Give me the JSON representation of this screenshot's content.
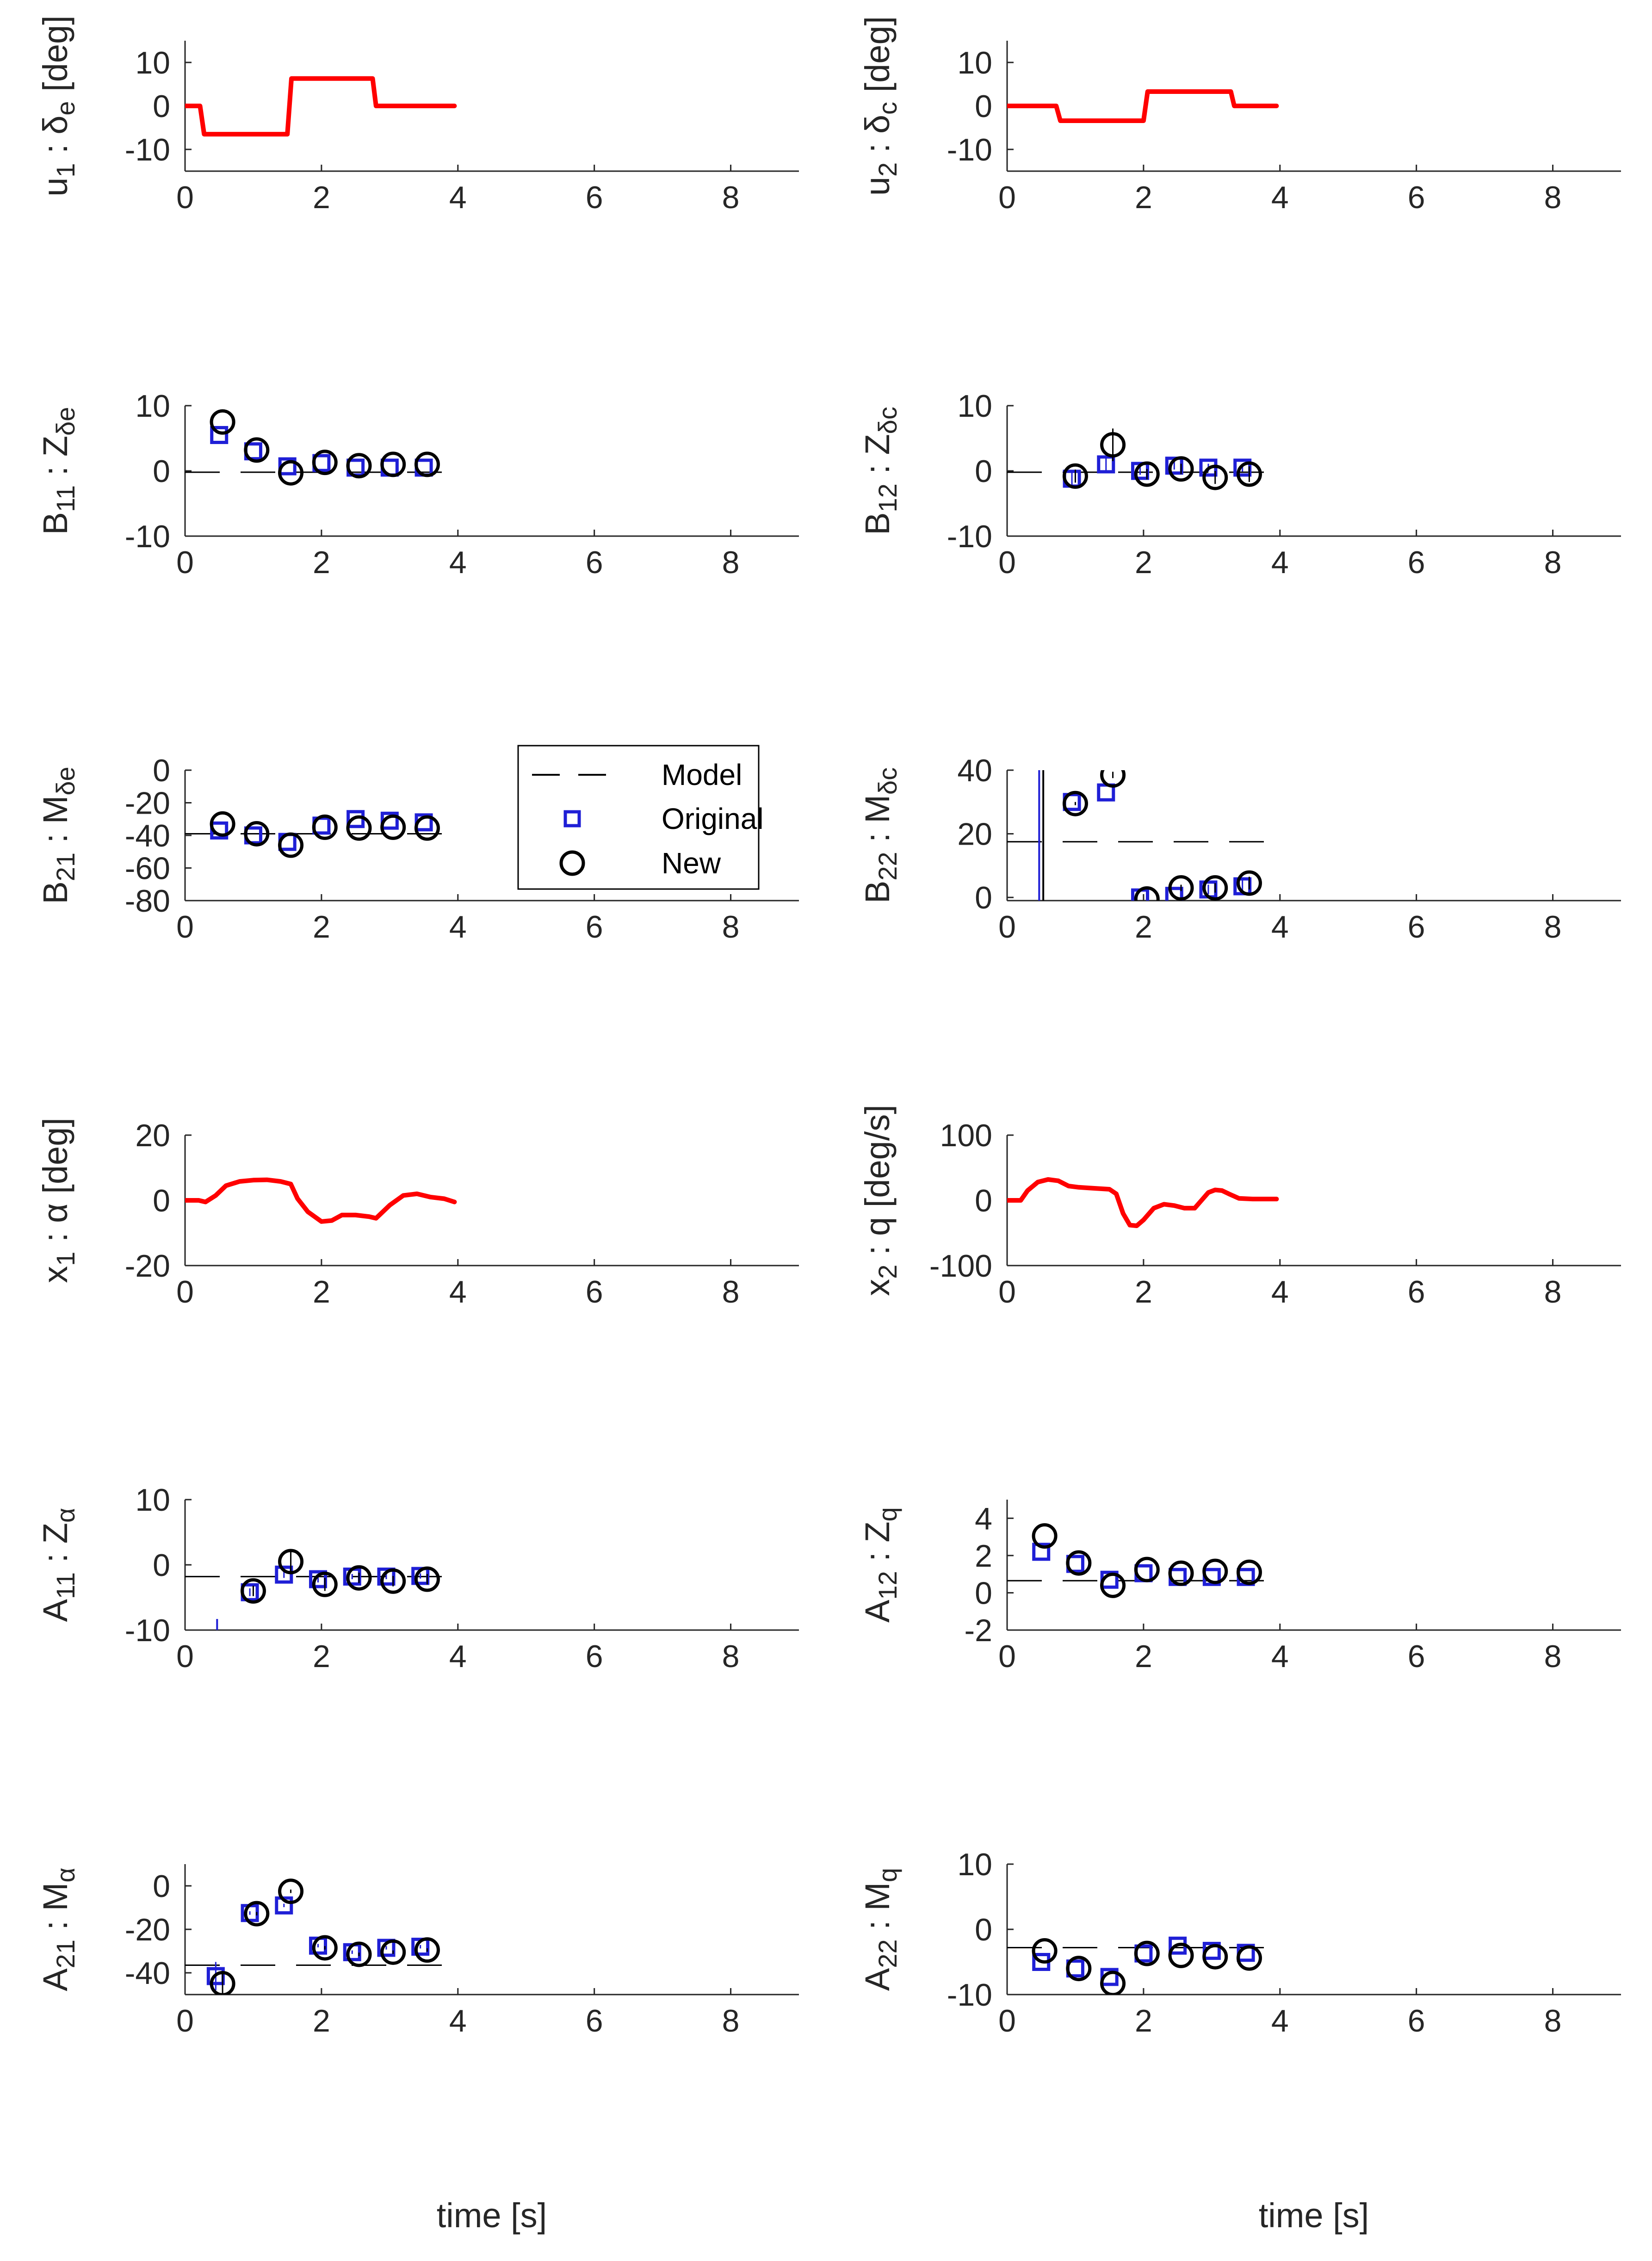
{
  "figure": {
    "xlabel_bottom": "time [s]",
    "legend": {
      "entries": [
        {
          "label": "Model",
          "marker": "dash",
          "color": "#000000"
        },
        {
          "label": "Original",
          "marker": "square",
          "color": "#1f1fd6"
        },
        {
          "label": "New",
          "marker": "circle",
          "color": "#000000"
        }
      ]
    }
  },
  "chart_data": [
    {
      "id": "u1",
      "type": "line",
      "ylabel_parts": [
        "u",
        "1",
        " : δ",
        "e",
        " [deg]"
      ],
      "xlim": [
        0,
        9
      ],
      "ylim": [
        -15,
        15
      ],
      "xticks": [
        0,
        2,
        4,
        6,
        8
      ],
      "yticks": [
        -10,
        0,
        10
      ],
      "series": [
        {
          "name": "input",
          "color": "#ff0000",
          "x": [
            0,
            0.22,
            0.28,
            1.5,
            1.56,
            2.75,
            2.8,
            3.95
          ],
          "y": [
            0,
            0,
            -6.5,
            -6.5,
            6.3,
            6.3,
            0,
            0
          ]
        }
      ]
    },
    {
      "id": "u2",
      "type": "line",
      "ylabel_parts": [
        "u",
        "2",
        " : δ",
        "c",
        " [deg]"
      ],
      "xlim": [
        0,
        9
      ],
      "ylim": [
        -15,
        15
      ],
      "xticks": [
        0,
        2,
        4,
        6,
        8
      ],
      "yticks": [
        -10,
        0,
        10
      ],
      "series": [
        {
          "name": "input",
          "color": "#ff0000",
          "x": [
            0,
            0.72,
            0.78,
            2.0,
            2.06,
            3.28,
            3.33,
            3.95
          ],
          "y": [
            0,
            0,
            -3.4,
            -3.4,
            3.3,
            3.3,
            0,
            0
          ]
        }
      ]
    },
    {
      "id": "B11",
      "type": "scatter",
      "ylabel_parts": [
        "B",
        "11",
        " : Z",
        "δe",
        ""
      ],
      "xlim": [
        0,
        9
      ],
      "ylim": [
        -10,
        10
      ],
      "xticks": [
        0,
        2,
        4,
        6,
        8
      ],
      "yticks": [
        -10,
        0,
        10
      ],
      "model": {
        "x": [
          0,
          4
        ],
        "y": [
          -0.2,
          -0.2
        ]
      },
      "original": {
        "x": [
          0.5,
          1.0,
          1.5,
          2.0,
          2.5,
          3.0,
          3.5
        ],
        "y": [
          5.5,
          3.0,
          0.7,
          1.2,
          0.5,
          0.5,
          0.5
        ],
        "err": [
          0,
          0,
          0,
          0,
          0,
          0,
          0
        ]
      },
      "new": {
        "x": [
          0.55,
          1.05,
          1.55,
          2.05,
          2.55,
          3.05,
          3.55
        ],
        "y": [
          7.5,
          3.2,
          -0.3,
          1.3,
          0.8,
          1.0,
          1.0
        ],
        "err": [
          0,
          0,
          0,
          0,
          0,
          0,
          0
        ]
      }
    },
    {
      "id": "B12",
      "type": "scatter",
      "ylabel_parts": [
        "B",
        "12",
        " : Z",
        "δc",
        ""
      ],
      "xlim": [
        0,
        9
      ],
      "ylim": [
        -10,
        10
      ],
      "xticks": [
        0,
        2,
        4,
        6,
        8
      ],
      "yticks": [
        -10,
        0,
        10
      ],
      "model": {
        "x": [
          0,
          4
        ],
        "y": [
          -0.2,
          -0.2
        ]
      },
      "original": {
        "x": [
          0.95,
          1.45,
          1.95,
          2.45,
          2.95,
          3.45
        ],
        "y": [
          -1.2,
          1.0,
          0.0,
          0.8,
          0.5,
          0.5
        ],
        "err": [
          1.2,
          1.0,
          0.6,
          0.6,
          0.6,
          0.6
        ]
      },
      "new": {
        "x": [
          1.0,
          1.55,
          2.05,
          2.55,
          3.05,
          3.55
        ],
        "y": [
          -0.8,
          4.0,
          -0.5,
          0.3,
          -1.0,
          -0.5
        ],
        "err": [
          1.0,
          2.5,
          0.8,
          0.8,
          1.0,
          1.2
        ]
      }
    },
    {
      "id": "B21",
      "type": "scatter",
      "ylabel_parts": [
        "B",
        "21",
        " : M",
        "δe",
        ""
      ],
      "xlim": [
        0,
        9
      ],
      "ylim": [
        -80,
        0
      ],
      "xticks": [
        0,
        2,
        4,
        6,
        8
      ],
      "yticks": [
        -80,
        -60,
        -40,
        -20,
        0
      ],
      "model": {
        "x": [
          0,
          4
        ],
        "y": [
          -39,
          -39
        ]
      },
      "original": {
        "x": [
          0.5,
          1.0,
          1.5,
          2.0,
          2.5,
          3.0,
          3.5
        ],
        "y": [
          -37,
          -40,
          -44,
          -34,
          -30,
          -31,
          -32
        ],
        "err": [
          0,
          0,
          0,
          0,
          0,
          0,
          0
        ]
      },
      "new": {
        "x": [
          0.55,
          1.05,
          1.55,
          2.05,
          2.55,
          3.05,
          3.55
        ],
        "y": [
          -33,
          -39,
          -46,
          -35,
          -35.5,
          -35,
          -35.5
        ],
        "err": [
          0,
          0,
          0,
          0,
          0,
          0,
          0
        ]
      }
    },
    {
      "id": "B22",
      "type": "scatter",
      "ylabel_parts": [
        "B",
        "22",
        " : M",
        "δc",
        ""
      ],
      "xlim": [
        0,
        9
      ],
      "ylim": [
        -1,
        40
      ],
      "xticks": [
        0,
        2,
        4,
        6,
        8
      ],
      "yticks": [
        0,
        20,
        40
      ],
      "model": {
        "x": [
          0,
          4
        ],
        "y": [
          17.5,
          17.5
        ]
      },
      "original": {
        "x": [
          0.95,
          1.45,
          1.95,
          2.45,
          2.95,
          3.45
        ],
        "y": [
          30,
          33,
          0,
          0.5,
          2.5,
          3.5
        ],
        "err": [
          0,
          0,
          0,
          0,
          1.5,
          2.0
        ]
      },
      "new": {
        "x": [
          1.0,
          1.55,
          2.05,
          2.55,
          3.05,
          3.55
        ],
        "y": [
          29.5,
          38.5,
          -0.5,
          3.0,
          3.0,
          4.5
        ],
        "err": [
          0.5,
          1.0,
          0,
          1.0,
          1.5,
          2.0
        ]
      },
      "extra_lines": [
        {
          "x": 0.47,
          "y1": -1,
          "y2": 40,
          "color": "#1f1fd6"
        },
        {
          "x": 0.53,
          "y1": -1,
          "y2": 40,
          "color": "#000000"
        }
      ]
    },
    {
      "id": "x1",
      "type": "line",
      "ylabel_parts": [
        "x",
        "1",
        " : α [deg]",
        "",
        ""
      ],
      "xlim": [
        0,
        9
      ],
      "ylim": [
        -20,
        20
      ],
      "xticks": [
        0,
        2,
        4,
        6,
        8
      ],
      "yticks": [
        -20,
        0,
        20
      ],
      "series": [
        {
          "name": "state",
          "color": "#ff0000",
          "x": [
            0,
            0.2,
            0.3,
            0.45,
            0.6,
            0.8,
            1.0,
            1.2,
            1.4,
            1.55,
            1.65,
            1.8,
            2.0,
            2.15,
            2.3,
            2.5,
            2.7,
            2.8,
            3.0,
            3.2,
            3.4,
            3.6,
            3.8,
            3.95
          ],
          "y": [
            0,
            0,
            -0.5,
            1.5,
            4.5,
            5.8,
            6.2,
            6.3,
            5.8,
            5.0,
            0.5,
            -3.5,
            -6.5,
            -6.2,
            -4.5,
            -4.5,
            -5.0,
            -5.5,
            -1.5,
            1.5,
            2.0,
            1.0,
            0.5,
            -0.5
          ]
        }
      ]
    },
    {
      "id": "x2",
      "type": "line",
      "ylabel_parts": [
        "x",
        "2",
        " : q [deg/s]",
        "",
        ""
      ],
      "xlim": [
        0,
        9
      ],
      "ylim": [
        -100,
        100
      ],
      "xticks": [
        0,
        2,
        4,
        6,
        8
      ],
      "yticks": [
        -100,
        0,
        100
      ],
      "series": [
        {
          "name": "state",
          "color": "#ff0000",
          "x": [
            0,
            0.2,
            0.3,
            0.45,
            0.6,
            0.75,
            0.9,
            1.05,
            1.2,
            1.35,
            1.5,
            1.6,
            1.7,
            1.8,
            1.9,
            2.0,
            2.15,
            2.3,
            2.45,
            2.6,
            2.75,
            2.85,
            2.95,
            3.05,
            3.15,
            3.25,
            3.4,
            3.6,
            3.8,
            3.95
          ],
          "y": [
            0,
            0,
            15,
            28,
            32,
            30,
            22,
            20,
            19,
            18,
            17,
            10,
            -20,
            -38,
            -39,
            -30,
            -12,
            -6,
            -8,
            -12,
            -12,
            0,
            12,
            16,
            15,
            10,
            3,
            2,
            2,
            2
          ]
        }
      ]
    },
    {
      "id": "A11",
      "type": "scatter",
      "ylabel_parts": [
        "A",
        "11",
        " : Z",
        "α",
        ""
      ],
      "xlim": [
        0,
        9
      ],
      "ylim": [
        -10,
        10
      ],
      "xticks": [
        0,
        2,
        4,
        6,
        8
      ],
      "yticks": [
        -10,
        0,
        10
      ],
      "model": {
        "x": [
          0,
          4
        ],
        "y": [
          -1.8,
          -1.8
        ]
      },
      "original": {
        "x": [
          0.95,
          1.45,
          1.95,
          2.45,
          2.95,
          3.45
        ],
        "y": [
          -4.2,
          -1.5,
          -2.2,
          -1.8,
          -1.8,
          -1.7
        ],
        "err": [
          0.6,
          0.5,
          0.5,
          0.4,
          0.4,
          0.4
        ]
      },
      "new": {
        "x": [
          1.0,
          1.55,
          2.05,
          2.55,
          3.05,
          3.55
        ],
        "y": [
          -4.0,
          0.5,
          -3.0,
          -2.0,
          -2.5,
          -2.2
        ],
        "err": [
          0.8,
          1.5,
          1.0,
          0.8,
          0.8,
          0.8
        ]
      },
      "extra_lines": [
        {
          "x": 0.47,
          "y1": -10,
          "y2": -8.3,
          "color": "#1f1fd6"
        }
      ]
    },
    {
      "id": "A12",
      "type": "scatter",
      "ylabel_parts": [
        "A",
        "12",
        " : Z",
        "q",
        ""
      ],
      "xlim": [
        0,
        9
      ],
      "ylim": [
        -2,
        5
      ],
      "xticks": [
        0,
        2,
        4,
        6,
        8
      ],
      "yticks": [
        -2,
        0,
        2,
        4
      ],
      "model": {
        "x": [
          0,
          4
        ],
        "y": [
          0.65,
          0.65
        ]
      },
      "original": {
        "x": [
          0.5,
          1.0,
          1.5,
          2.0,
          2.5,
          3.0,
          3.5
        ],
        "y": [
          2.2,
          1.55,
          0.7,
          1.05,
          0.85,
          0.85,
          0.85
        ],
        "err": [
          0,
          0,
          0,
          0,
          0,
          0,
          0
        ]
      },
      "new": {
        "x": [
          0.55,
          1.05,
          1.55,
          2.05,
          2.55,
          3.05,
          3.55
        ],
        "y": [
          3.05,
          1.6,
          0.4,
          1.25,
          1.05,
          1.15,
          1.1
        ],
        "err": [
          0,
          0,
          0,
          0,
          0,
          0,
          0
        ]
      }
    },
    {
      "id": "A21",
      "type": "scatter",
      "ylabel_parts": [
        "A",
        "21",
        " : M",
        "α",
        ""
      ],
      "xlim": [
        0,
        9
      ],
      "ylim": [
        -50,
        10
      ],
      "xticks": [
        0,
        2,
        4,
        6,
        8
      ],
      "yticks": [
        -40,
        -20,
        0
      ],
      "model": {
        "x": [
          0,
          4
        ],
        "y": [
          -36.5,
          -36.5
        ]
      },
      "original": {
        "x": [
          0.45,
          0.95,
          1.45,
          1.95,
          2.45,
          2.95,
          3.45
        ],
        "y": [
          -41.5,
          -12.5,
          -9.0,
          -27.5,
          -30.5,
          -28.5,
          -28.0
        ],
        "err": [
          6.5,
          0.8,
          0.8,
          0.8,
          0.8,
          0.8,
          0.8
        ]
      },
      "new": {
        "x": [
          0.55,
          1.05,
          1.55,
          2.05,
          2.55,
          3.05,
          3.55
        ],
        "y": [
          -45.0,
          -12.8,
          -2.5,
          -28.5,
          -31.5,
          -30.5,
          -29.5
        ],
        "err": [
          5.0,
          0.8,
          0.8,
          0.8,
          0.8,
          0.8,
          0.8
        ]
      }
    },
    {
      "id": "A22",
      "type": "scatter",
      "ylabel_parts": [
        "A",
        "22",
        " : M",
        "q",
        ""
      ],
      "xlim": [
        0,
        9
      ],
      "ylim": [
        -10,
        10
      ],
      "xticks": [
        0,
        2,
        4,
        6,
        8
      ],
      "yticks": [
        -10,
        0,
        10
      ],
      "model": {
        "x": [
          0,
          4
        ],
        "y": [
          -2.8,
          -2.8
        ]
      },
      "original": {
        "x": [
          0.5,
          1.0,
          1.5,
          2.0,
          2.5,
          3.0,
          3.5
        ],
        "y": [
          -5.0,
          -6.0,
          -7.3,
          -3.7,
          -2.5,
          -3.3,
          -3.6
        ],
        "err": [
          0,
          0,
          0,
          0,
          0,
          0,
          0
        ]
      },
      "new": {
        "x": [
          0.55,
          1.05,
          1.55,
          2.05,
          2.55,
          3.05,
          3.55
        ],
        "y": [
          -3.3,
          -6.0,
          -8.3,
          -3.7,
          -4.0,
          -4.2,
          -4.4
        ],
        "err": [
          0,
          0,
          0,
          0,
          0,
          0,
          0
        ]
      }
    }
  ]
}
